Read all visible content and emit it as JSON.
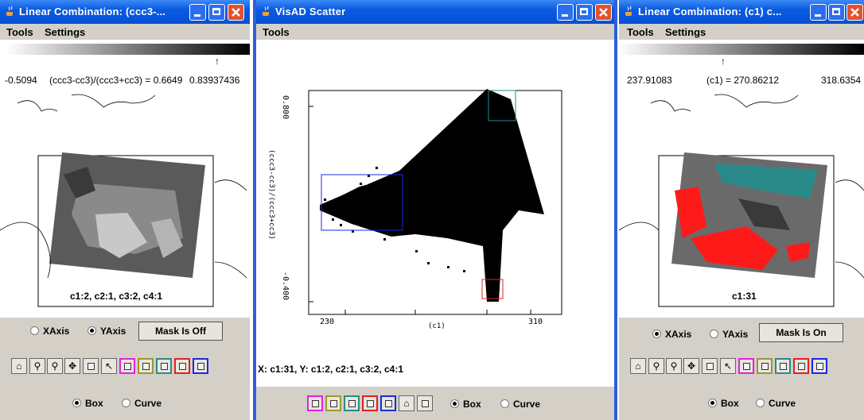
{
  "colors": {
    "title": "#0a5be0",
    "chrome": "#d4d0c8",
    "frame": "#2f5fd8"
  },
  "left": {
    "title": "Linear Combination: (ccc3-...",
    "menus": [
      "Tools",
      "Settings"
    ],
    "range_min": "-0.5094",
    "expr": "(ccc3-cc3)/(ccc3+cc3) = 0.6649",
    "range_max": "0.83937436",
    "map_caption": "c1:2, c2:1, c3:2, c4:1",
    "xaxis": "XAxis",
    "yaxis": "YAxis",
    "axis_selected": "YAxis",
    "mask_button": "Mask Is Off",
    "box": "Box",
    "curve": "Curve"
  },
  "center": {
    "title": "VisAD Scatter",
    "menus": [
      "Tools"
    ],
    "y_tick_top": "0.800",
    "y_tick_bottom": "-0.400",
    "y_axis_label": "(ccc3-cc3)/(ccc3+cc3)",
    "x_tick_left": "230",
    "x_tick_right": "310",
    "x_axis_label": "(c1)",
    "status": "X: c1:31,  Y: c1:2, c2:1, c3:2, c4:1",
    "box": "Box",
    "curve": "Curve"
  },
  "right": {
    "title": "Linear Combination: (c1)  c...",
    "menus": [
      "Tools",
      "Settings"
    ],
    "range_min": "237.91083",
    "expr": "(c1) = 270.86212",
    "range_max": "318.6354",
    "map_caption": "c1:31",
    "xaxis": "XAxis",
    "yaxis": "YAxis",
    "axis_selected": "XAxis",
    "mask_button": "Mask Is On",
    "box": "Box",
    "curve": "Curve"
  },
  "toolbar_icons": [
    "home-icon",
    "zoom-in-icon",
    "zoom-out-icon",
    "pan-icon",
    "select-icon",
    "pointer-icon"
  ],
  "selection_colors": [
    "#e81ee0",
    "#9a9a2a",
    "#2a8a8a",
    "#e02020",
    "#1a2ae0"
  ]
}
